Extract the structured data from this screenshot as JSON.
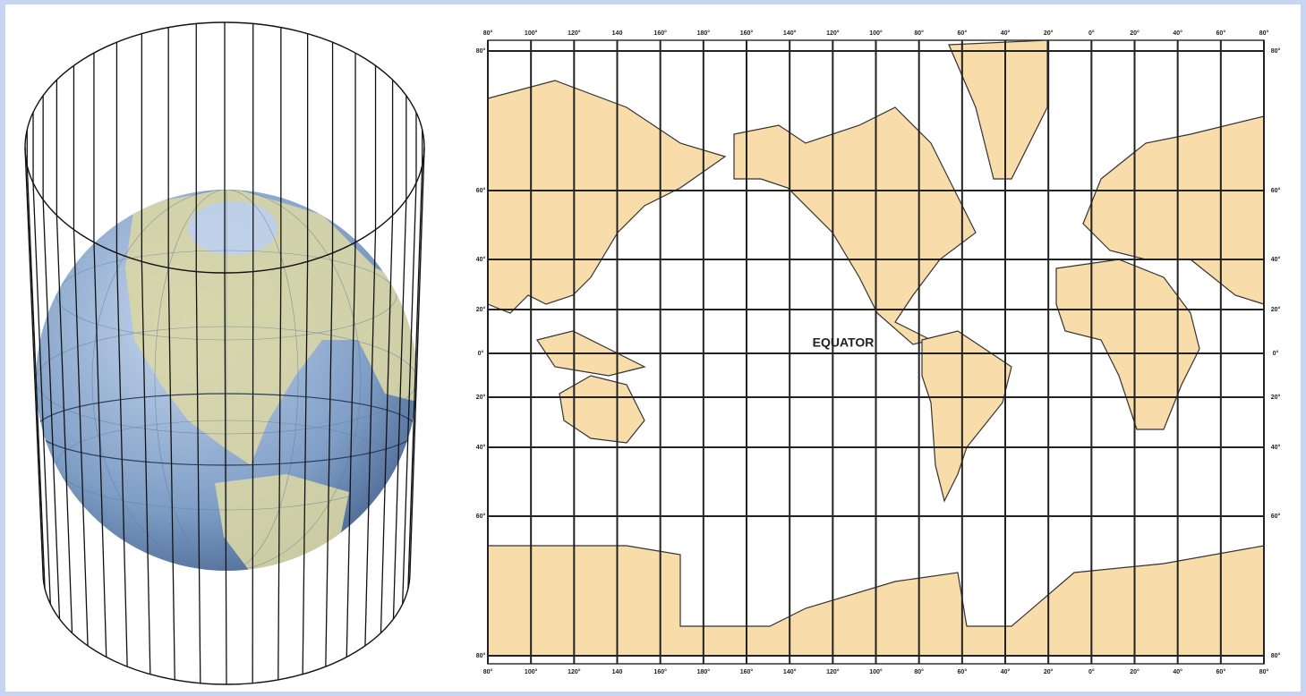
{
  "map": {
    "equator_label": "EQUATOR",
    "longitude_labels": [
      "80°",
      "100°",
      "120°",
      "140",
      "160°",
      "180°",
      "160°",
      "140°",
      "120°",
      "100°",
      "80°",
      "60°",
      "40°",
      "20°",
      "0°",
      "20°",
      "40°",
      "60°",
      "80°"
    ],
    "latitude_labels": [
      "80°",
      "60°",
      "40°",
      "20°",
      "0°",
      "20°",
      "40°",
      "60°",
      "80°"
    ]
  }
}
